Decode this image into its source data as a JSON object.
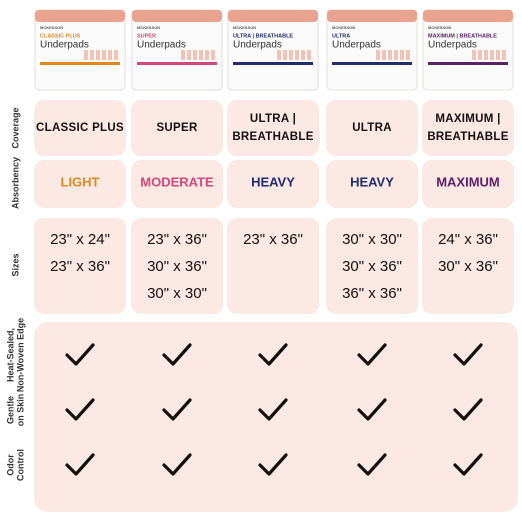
{
  "row_labels": [
    [
      "Coverage"
    ],
    [
      "Absorbency"
    ],
    [
      "Sizes"
    ],
    [
      "Heat-Sealed,",
      "Non-Woven Edge"
    ],
    [
      "Gentle",
      "on Skin"
    ],
    [
      "Odor",
      "Control"
    ]
  ],
  "products": [
    {
      "brand": "MCKESSON",
      "line": "CLASSIC PLUS",
      "name": "Underpads",
      "accent": "#e08a1e",
      "coverage": [
        "CLASSIC PLUS"
      ],
      "absorbency": "LIGHT",
      "sizes": [
        "23\" x 24\"",
        "23\" x 36\""
      ]
    },
    {
      "brand": "MCKESSON",
      "line": "SUPER",
      "name": "Underpads",
      "accent": "#d4477a",
      "coverage": [
        "SUPER"
      ],
      "absorbency": "MODERATE",
      "sizes": [
        "23\" x 36\"",
        "30\" x 36\"",
        "30\" x 30\""
      ]
    },
    {
      "brand": "MCKESSON",
      "line": "ULTRA | BREATHABLE",
      "name": "Underpads",
      "accent": "#1f2d6e",
      "coverage": [
        "ULTRA |",
        "BREATHABLE"
      ],
      "absorbency": "HEAVY",
      "sizes": [
        "23\" x 36\""
      ]
    },
    {
      "brand": "MCKESSON",
      "line": "ULTRA",
      "name": "Underpads",
      "accent": "#1f2d6e",
      "coverage": [
        "ULTRA"
      ],
      "absorbency": "HEAVY",
      "sizes": [
        "30\" x 30\"",
        "30\" x 36\"",
        "36\" x 36\""
      ]
    },
    {
      "brand": "MCKESSON",
      "line": "MAXIMUM | BREATHABLE",
      "name": "Underpads",
      "accent": "#5b2168",
      "coverage": [
        "MAXIMUM |",
        "BREATHABLE"
      ],
      "absorbency": "MAXIMUM",
      "sizes": [
        "24\" x 36\"",
        "30\" x 36\""
      ]
    }
  ]
}
